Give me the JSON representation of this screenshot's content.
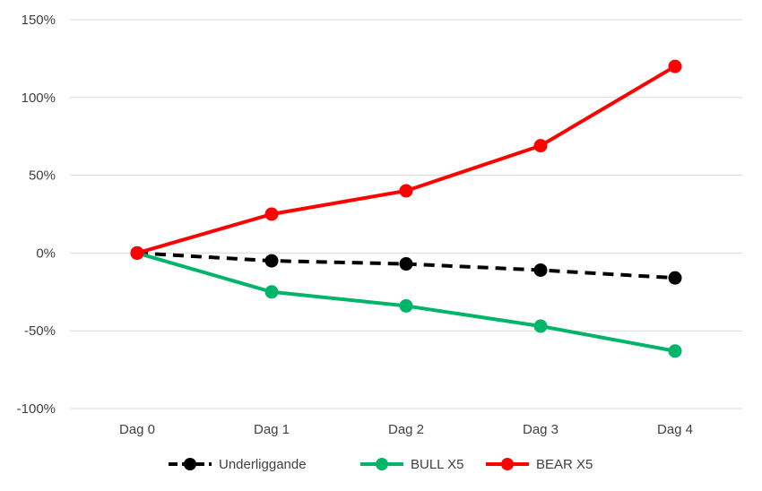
{
  "chart_data": {
    "type": "line",
    "categories": [
      "Dag 0",
      "Dag 1",
      "Dag 2",
      "Dag 3",
      "Dag 4"
    ],
    "ylim": [
      -100,
      150
    ],
    "yticks": [
      -100,
      -50,
      0,
      50,
      100,
      150
    ],
    "ytick_labels": [
      "-100%",
      "-50%",
      "0%",
      "50%",
      "100%",
      "150%"
    ],
    "grid": true,
    "legend_position": "bottom",
    "series": [
      {
        "name": "Underliggande",
        "values": [
          0,
          -5,
          -7,
          -11,
          -16
        ],
        "color": "#000000",
        "dashed": true
      },
      {
        "name": "BULL X5",
        "values": [
          0,
          -25,
          -34,
          -47,
          -63
        ],
        "color": "#00B56A",
        "dashed": false
      },
      {
        "name": "BEAR X5",
        "values": [
          0,
          25,
          40,
          69,
          120
        ],
        "color": "#FF0000",
        "dashed": false
      }
    ]
  }
}
